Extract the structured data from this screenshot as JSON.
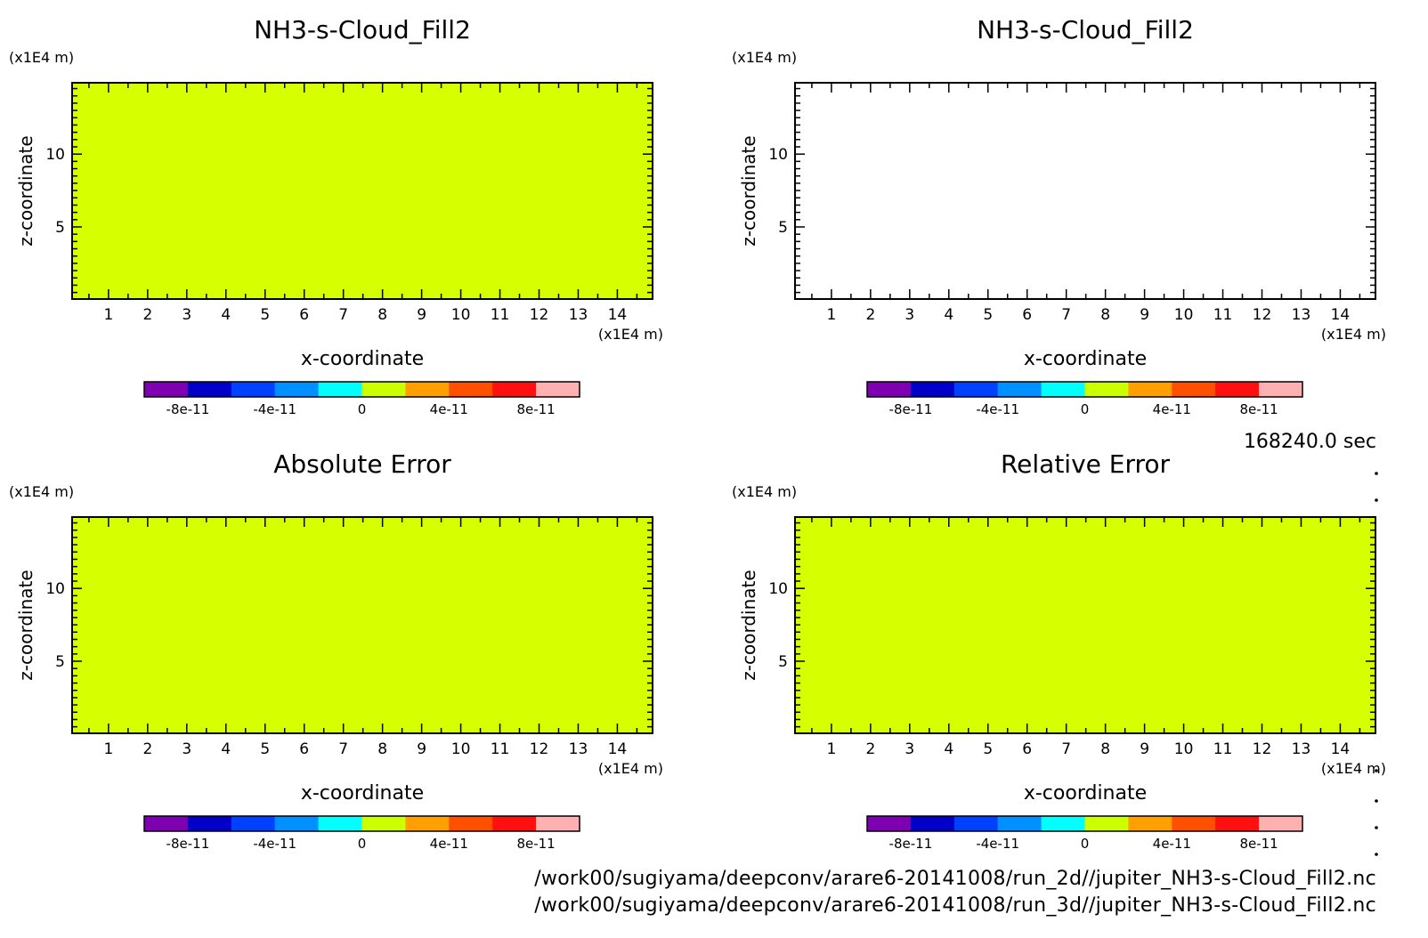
{
  "figure": {
    "time_label": "168240.0 sec",
    "file_paths": [
      "/work00/sugiyama/deepconv/arare6-20141008/run_2d//jupiter_NH3-s-Cloud_Fill2.nc",
      "/work00/sugiyama/deepconv/arare6-20141008/run_3d//jupiter_NH3-s-Cloud_Fill2.nc"
    ]
  },
  "colorbar": {
    "colors": [
      "#7f00b0",
      "#0000c8",
      "#0040ff",
      "#0090ff",
      "#00ffff",
      "#ccff00",
      "#ffa000",
      "#ff5000",
      "#ff1010",
      "#ffb0b0"
    ],
    "tick_labels": [
      "-8e-11",
      "-4e-11",
      "0",
      "4e-11",
      "8e-11"
    ],
    "tick_values": [
      -8e-11,
      -4e-11,
      0,
      4e-11,
      8e-11
    ],
    "range": [
      -1e-10,
      1e-10
    ]
  },
  "chart_data": [
    {
      "type": "heatmap",
      "title": "NH3-s-Cloud_Fill2",
      "xlabel": "x-coordinate",
      "ylabel": "z-coordinate",
      "x_unit": "(x1E4 m)",
      "y_unit": "(x1E4 m)",
      "xlim": [
        0.07,
        14.9
      ],
      "ylim": [
        0.05,
        14.9
      ],
      "xticks": [
        "1",
        "2",
        "3",
        "4",
        "5",
        "6",
        "7",
        "8",
        "9",
        "10",
        "11",
        "12",
        "13",
        "14"
      ],
      "yticks": [
        "5",
        "10"
      ],
      "fill_value": 0,
      "fill_color": "#d6ff00"
    },
    {
      "type": "heatmap",
      "title": "NH3-s-Cloud_Fill2",
      "xlabel": "x-coordinate",
      "ylabel": "z-coordinate",
      "x_unit": "(x1E4 m)",
      "y_unit": "(x1E4 m)",
      "xlim": [
        0.07,
        14.9
      ],
      "ylim": [
        0.05,
        14.9
      ],
      "xticks": [
        "1",
        "2",
        "3",
        "4",
        "5",
        "6",
        "7",
        "8",
        "9",
        "10",
        "11",
        "12",
        "13",
        "14"
      ],
      "yticks": [
        "5",
        "10"
      ],
      "fill_value": null,
      "fill_color": "#ffffff"
    },
    {
      "type": "heatmap",
      "title": "Absolute Error",
      "xlabel": "x-coordinate",
      "ylabel": "z-coordinate",
      "x_unit": "(x1E4 m)",
      "y_unit": "(x1E4 m)",
      "xlim": [
        0.07,
        14.9
      ],
      "ylim": [
        0.05,
        14.9
      ],
      "xticks": [
        "1",
        "2",
        "3",
        "4",
        "5",
        "6",
        "7",
        "8",
        "9",
        "10",
        "11",
        "12",
        "13",
        "14"
      ],
      "yticks": [
        "5",
        "10"
      ],
      "fill_value": 0,
      "fill_color": "#d6ff00"
    },
    {
      "type": "heatmap",
      "title": "Relative Error",
      "xlabel": "x-coordinate",
      "ylabel": "z-coordinate",
      "x_unit": "(x1E4 m)",
      "y_unit": "(x1E4 m)",
      "xlim": [
        0.07,
        14.9
      ],
      "ylim": [
        0.05,
        14.9
      ],
      "xticks": [
        "1",
        "2",
        "3",
        "4",
        "5",
        "6",
        "7",
        "8",
        "9",
        "10",
        "11",
        "12",
        "13",
        "14"
      ],
      "yticks": [
        "5",
        "10"
      ],
      "fill_value": 0,
      "fill_color": "#d6ff00"
    }
  ]
}
